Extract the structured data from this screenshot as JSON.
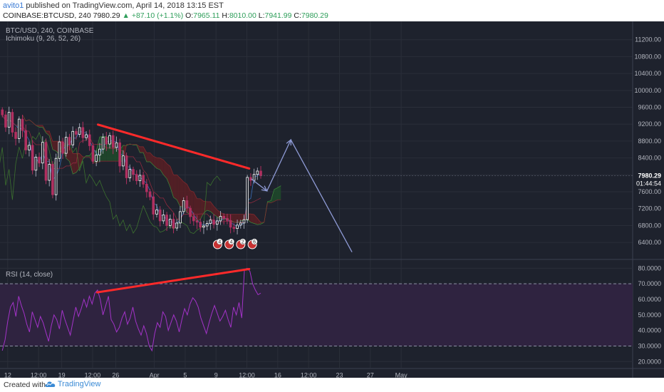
{
  "header": {
    "author": "avito1",
    "published_text": "published on TradingView.com, April 14, 2018 13:15 EST",
    "symbol_line": "COINBASE:BTCUSD, 240",
    "last_price": "7980.29",
    "change": "▲ +87.10 (+1.1%)",
    "o_label": "O:",
    "o_value": "7965.11",
    "h_label": "H:",
    "h_value": "8010.00",
    "l_label": "L:",
    "l_value": "7941.99",
    "c_label": "C:",
    "c_value": "7980.29"
  },
  "legend": {
    "symbol": "BTC/USD, 240, COINBASE",
    "ichimoku": "Ichimoku (9, 26, 52, 26)",
    "rsi": "RSI (14, close)"
  },
  "colors": {
    "background": "#1e222d",
    "grid": "#2a2e39",
    "candle_up": "#ffffff",
    "candle_down": "#b03060",
    "trendline": "#ff2a2a",
    "projection": "#8f9bd6",
    "rsi_line": "#a333c8",
    "rsi_band": "#2f2340",
    "kumo_bear": "#5a1f24",
    "kumo_bull": "#1f4a2a",
    "price_label_bg": "#4a4f5c"
  },
  "footer": {
    "created_with": "Created with",
    "brand": "TradingView"
  },
  "chart_data": [
    {
      "type": "candlestick",
      "name": "price",
      "ylim": [
        6200,
        11600
      ],
      "y_ticks": [
        6400,
        6800,
        7200,
        7600,
        8000,
        8400,
        8800,
        9200,
        9600,
        10000,
        10400,
        10800,
        11200
      ],
      "y_tick_labels": [
        "6400.00",
        "6800.00",
        "7200.00",
        "7600.00",
        "8000.00",
        "8400.00",
        "8800.00",
        "9200.00",
        "9600.00",
        "10000.00",
        "10400.00",
        "10800.00",
        "11200.00"
      ],
      "last_price_label": "7980.29",
      "countdown_label": "01:44:54",
      "x_tick_labels": [
        "12",
        "12:00",
        "19",
        "12:00",
        "26",
        "Apr",
        "5",
        "9",
        "12:00",
        "16",
        "12:00",
        "23",
        "27",
        "May"
      ],
      "x_range_days": [
        0,
        82
      ],
      "x_ticks_days": [
        1,
        5,
        8,
        12,
        15,
        20,
        24,
        28,
        32,
        36,
        40,
        44,
        48,
        52
      ],
      "event_badges": [
        "4",
        "4",
        "2",
        "6"
      ],
      "trendlines": [
        {
          "from": {
            "day": 12.7,
            "price": 9190
          },
          "to": {
            "day": 32.3,
            "price": 8150
          }
        },
        {
          "from": {
            "day": 32.6,
            "price": 7900
          },
          "to": {
            "day": 34.6,
            "price": 7620
          }
        },
        {
          "from": {
            "day": 34.6,
            "price": 7620
          },
          "to": {
            "day": 37.7,
            "price": 8830
          }
        },
        {
          "from": {
            "day": 37.7,
            "price": 8830
          },
          "to": {
            "day": 45.6,
            "price": 6180
          }
        }
      ],
      "closes": [
        9420,
        9130,
        9480,
        9010,
        8860,
        9320,
        9050,
        8590,
        8700,
        8110,
        8420,
        8280,
        8770,
        7870,
        8250,
        7530,
        8390,
        8780,
        8510,
        8890,
        8710,
        9030,
        8960,
        9120,
        8880,
        8950,
        8690,
        8320,
        8470,
        8610,
        8890,
        8730,
        8930,
        8650,
        8760,
        8210,
        8450,
        7930,
        8130,
        8010,
        7860,
        7990,
        7780,
        7600,
        7480,
        7070,
        7170,
        6910,
        7050,
        6800,
        6950,
        6740,
        6860,
        7130,
        7390,
        7210,
        7010,
        6910,
        6880,
        6760,
        6790,
        6850,
        6930,
        6830,
        6910,
        7020,
        6970,
        6920,
        6760,
        6730,
        6810,
        6860,
        6940,
        7940,
        7870,
        8010,
        8090,
        7980
      ]
    },
    {
      "type": "line",
      "name": "RSI",
      "ylim": [
        16,
        82
      ],
      "y_ticks": [
        20,
        30,
        40,
        50,
        60,
        70,
        80
      ],
      "y_tick_labels": [
        "20.0000",
        "30.0000",
        "40.0000",
        "50.0000",
        "60.0000",
        "70.0000",
        "80.0000"
      ],
      "band": [
        30,
        70
      ],
      "values": [
        27,
        34,
        46,
        55,
        58,
        49,
        62,
        56,
        51,
        44,
        39,
        52,
        47,
        42,
        49,
        45,
        39,
        33,
        43,
        50,
        47,
        41,
        53,
        47,
        42,
        37,
        46,
        55,
        49,
        54,
        60,
        55,
        62,
        57,
        64,
        66,
        60,
        50,
        56,
        62,
        47,
        44,
        39,
        42,
        48,
        52,
        44,
        48,
        55,
        46,
        41,
        37,
        43,
        38,
        30,
        27,
        38,
        45,
        42,
        52,
        49,
        40,
        45,
        50,
        46,
        39,
        47,
        54,
        50,
        57,
        61,
        59,
        55,
        48,
        43,
        38,
        45,
        51,
        56,
        51,
        46,
        49,
        53,
        47,
        42,
        55,
        50,
        58,
        48,
        79,
        80,
        78,
        70,
        66,
        63,
        64
      ],
      "divergence_line": {
        "from": {
          "day": 12.6,
          "value": 64.5
        },
        "to": {
          "day": 32.3,
          "value": 79.5
        }
      }
    }
  ]
}
